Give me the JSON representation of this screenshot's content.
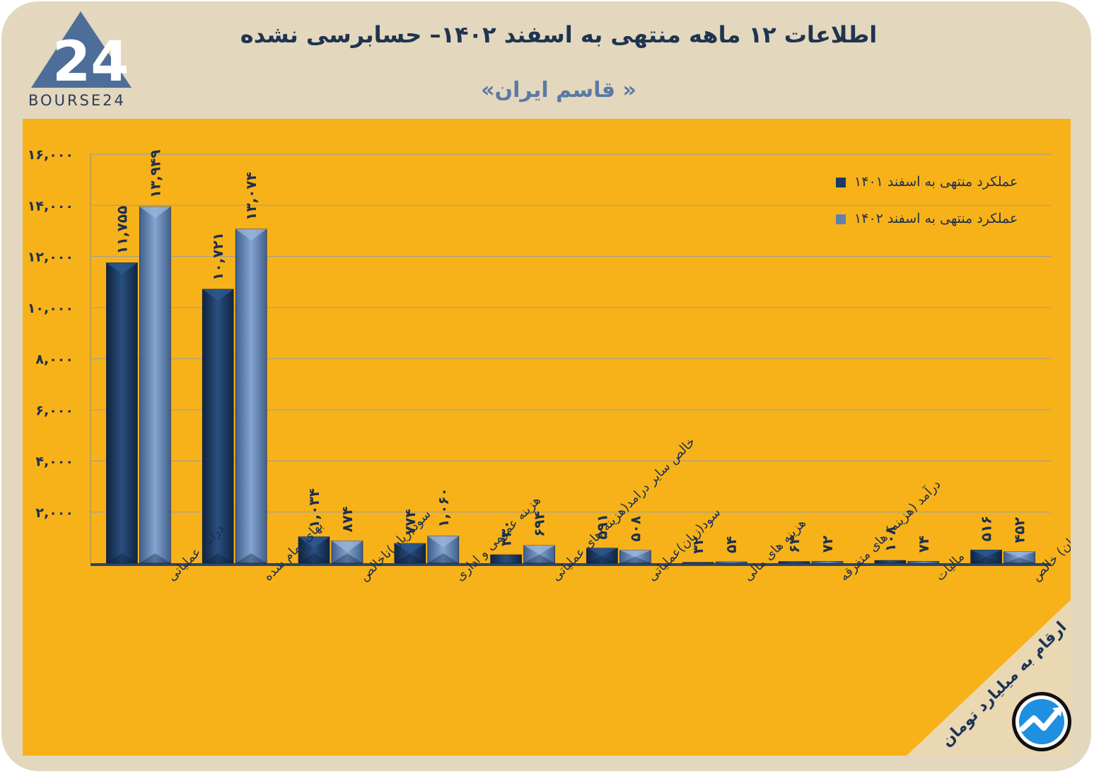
{
  "brand": {
    "logo_text": "BOURSE24",
    "logo_mark": "24",
    "badge_icon": "trend-arrow-icon"
  },
  "header": {
    "title": "اطلاعات ۱۲ ماهه منتهی به اسفند  ۱۴۰۲– حسابرسی نشده",
    "subtitle": "«قاسم ایران »"
  },
  "unit_note": "ارقام به میلیارد تومان",
  "colors": {
    "series1": "#1b3a66",
    "series2": "#5f80b0",
    "panel": "#f7b219",
    "card": "#e3d7be"
  },
  "chart_data": {
    "type": "bar",
    "title": "",
    "xlabel": "",
    "ylabel": "",
    "ylim": [
      0,
      16000
    ],
    "yticks": [
      2000,
      4000,
      6000,
      8000,
      10000,
      12000,
      14000,
      16000
    ],
    "ytick_labels": [
      "۲,۰۰۰",
      "۴,۰۰۰",
      "۶,۰۰۰",
      "۸,۰۰۰",
      "۱۰,۰۰۰",
      "۱۲,۰۰۰",
      "۱۴,۰۰۰",
      "۱۶,۰۰۰"
    ],
    "grid": true,
    "legend_position": "top-right",
    "categories": [
      "درآمد عملیاتی",
      "بهای تمام شده",
      "سود(زیان)ناخالص",
      "هزینه عمومی و اداری",
      "خالص سایر درامد(هزینه)های عملیاتی",
      "سود(زیان)عملیاتی",
      "هزینه های مالی",
      "درآمد (هزینه) های متفرقه",
      "مالیات",
      "سود(زیان) خالص"
    ],
    "series": [
      {
        "name": "عملکرد منتهی به اسفند ۱۴۰۱",
        "values": [
          11755,
          10721,
          1034,
          774,
          330,
          591,
          32,
          64,
          108,
          516
        ],
        "labels": [
          "۱۱,۷۵۵",
          "۱۰,۷۲۱",
          "۱,۰۳۴",
          "۷۷۴",
          "۳۳۰",
          "۵۹۱",
          "۳۲",
          "۶۴",
          "۱۰۸",
          "۵۱۶"
        ]
      },
      {
        "name": "عملکرد منتهی به اسفند ۱۴۰۲",
        "values": [
          13949,
          13074,
          874,
          1060,
          694,
          508,
          54,
          72,
          74,
          452
        ],
        "labels": [
          "۱۳,۹۴۹",
          "۱۳,۰۷۴",
          "۸۷۴",
          "۱,۰۶۰",
          "۶۹۴",
          "۵۰۸",
          "۵۴",
          "۷۲",
          "۷۴",
          "۴۵۲"
        ]
      }
    ]
  }
}
